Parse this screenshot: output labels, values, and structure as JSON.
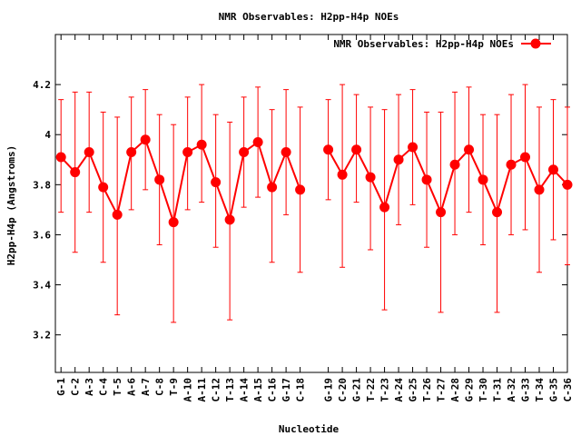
{
  "chart_data": {
    "type": "line",
    "title": "NMR Observables: H2pp-H4p NOEs",
    "xlabel": "Nucleotide",
    "ylabel": "H2pp-H4p (Angstroms)",
    "ylim": [
      3.05,
      4.4
    ],
    "yticks": [
      "3.2",
      "3.4",
      "3.6",
      "3.8",
      "4",
      "4.2"
    ],
    "ytick_values": [
      3.2,
      3.4,
      3.6,
      3.8,
      4.0,
      4.2
    ],
    "grid": false,
    "legend_position": "top-right",
    "series": [
      {
        "name": "NMR Observables: H2pp-H4p NOEs",
        "color": "#ff0000",
        "points": [
          {
            "label": "G-1",
            "x": 1,
            "y": 3.91,
            "lo": 3.69,
            "hi": 4.14
          },
          {
            "label": "C-2",
            "x": 2,
            "y": 3.85,
            "lo": 3.53,
            "hi": 4.17
          },
          {
            "label": "A-3",
            "x": 3,
            "y": 3.93,
            "lo": 3.69,
            "hi": 4.17
          },
          {
            "label": "C-4",
            "x": 4,
            "y": 3.79,
            "lo": 3.49,
            "hi": 4.09
          },
          {
            "label": "T-5",
            "x": 5,
            "y": 3.68,
            "lo": 3.28,
            "hi": 4.07
          },
          {
            "label": "A-6",
            "x": 6,
            "y": 3.93,
            "lo": 3.7,
            "hi": 4.15
          },
          {
            "label": "A-7",
            "x": 7,
            "y": 3.98,
            "lo": 3.78,
            "hi": 4.18
          },
          {
            "label": "C-8",
            "x": 8,
            "y": 3.82,
            "lo": 3.56,
            "hi": 4.08
          },
          {
            "label": "T-9",
            "x": 9,
            "y": 3.65,
            "lo": 3.25,
            "hi": 4.04
          },
          {
            "label": "A-10",
            "x": 10,
            "y": 3.93,
            "lo": 3.7,
            "hi": 4.15
          },
          {
            "label": "A-11",
            "x": 11,
            "y": 3.96,
            "lo": 3.73,
            "hi": 4.2
          },
          {
            "label": "C-12",
            "x": 12,
            "y": 3.81,
            "lo": 3.55,
            "hi": 4.08
          },
          {
            "label": "T-13",
            "x": 13,
            "y": 3.66,
            "lo": 3.26,
            "hi": 4.05
          },
          {
            "label": "A-14",
            "x": 14,
            "y": 3.93,
            "lo": 3.71,
            "hi": 4.15
          },
          {
            "label": "A-15",
            "x": 15,
            "y": 3.97,
            "lo": 3.75,
            "hi": 4.19
          },
          {
            "label": "C-16",
            "x": 16,
            "y": 3.79,
            "lo": 3.49,
            "hi": 4.1
          },
          {
            "label": "G-17",
            "x": 17,
            "y": 3.93,
            "lo": 3.68,
            "hi": 4.18
          },
          {
            "label": "C-18",
            "x": 18,
            "y": 3.78,
            "lo": 3.45,
            "hi": 4.11
          },
          {
            "label": "G-19",
            "x": 20,
            "y": 3.94,
            "lo": 3.74,
            "hi": 4.14
          },
          {
            "label": "C-20",
            "x": 21,
            "y": 3.84,
            "lo": 3.47,
            "hi": 4.2
          },
          {
            "label": "G-21",
            "x": 22,
            "y": 3.94,
            "lo": 3.73,
            "hi": 4.16
          },
          {
            "label": "T-22",
            "x": 23,
            "y": 3.83,
            "lo": 3.54,
            "hi": 4.11
          },
          {
            "label": "T-23",
            "x": 24,
            "y": 3.71,
            "lo": 3.3,
            "hi": 4.1
          },
          {
            "label": "A-24",
            "x": 25,
            "y": 3.9,
            "lo": 3.64,
            "hi": 4.16
          },
          {
            "label": "G-25",
            "x": 26,
            "y": 3.95,
            "lo": 3.72,
            "hi": 4.18
          },
          {
            "label": "T-26",
            "x": 27,
            "y": 3.82,
            "lo": 3.55,
            "hi": 4.09
          },
          {
            "label": "T-27",
            "x": 28,
            "y": 3.69,
            "lo": 3.29,
            "hi": 4.09
          },
          {
            "label": "A-28",
            "x": 29,
            "y": 3.88,
            "lo": 3.6,
            "hi": 4.17
          },
          {
            "label": "G-29",
            "x": 30,
            "y": 3.94,
            "lo": 3.69,
            "hi": 4.19
          },
          {
            "label": "T-30",
            "x": 31,
            "y": 3.82,
            "lo": 3.56,
            "hi": 4.08
          },
          {
            "label": "T-31",
            "x": 32,
            "y": 3.69,
            "lo": 3.29,
            "hi": 4.08
          },
          {
            "label": "A-32",
            "x": 33,
            "y": 3.88,
            "lo": 3.6,
            "hi": 4.16
          },
          {
            "label": "G-33",
            "x": 34,
            "y": 3.91,
            "lo": 3.62,
            "hi": 4.2
          },
          {
            "label": "T-34",
            "x": 35,
            "y": 3.78,
            "lo": 3.45,
            "hi": 4.11
          },
          {
            "label": "G-35",
            "x": 36,
            "y": 3.86,
            "lo": 3.58,
            "hi": 4.14
          },
          {
            "label": "C-36",
            "x": 37,
            "y": 3.8,
            "lo": 3.48,
            "hi": 4.11
          }
        ]
      }
    ],
    "xlim": [
      0.6,
      37.0
    ]
  }
}
